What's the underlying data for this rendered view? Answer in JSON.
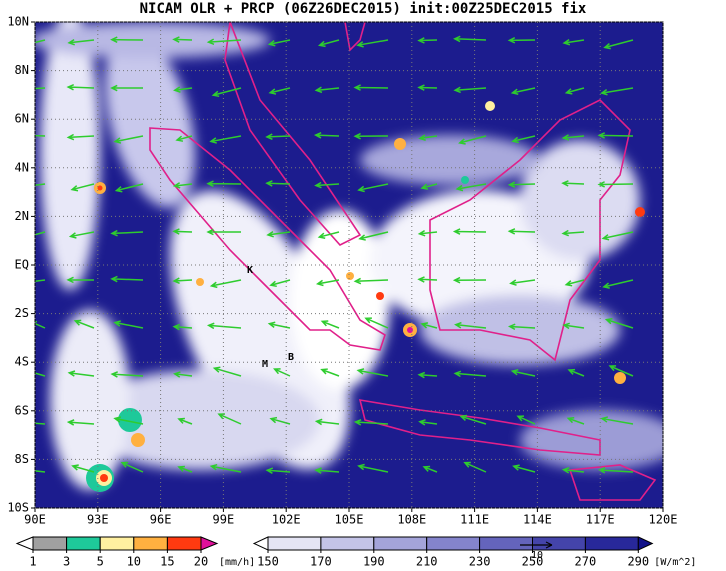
{
  "map": {
    "title": "NICAM OLR + PRCP (06Z26DEC2015) init:00Z25DEC2015 fix",
    "xlim": [
      90,
      120
    ],
    "ylim": [
      -10,
      10
    ],
    "xticks": [
      {
        "value": 90,
        "label": "90E"
      },
      {
        "value": 93,
        "label": "93E"
      },
      {
        "value": 96,
        "label": "96E"
      },
      {
        "value": 99,
        "label": "99E"
      },
      {
        "value": 102,
        "label": "102E"
      },
      {
        "value": 105,
        "label": "105E"
      },
      {
        "value": 108,
        "label": "108E"
      },
      {
        "value": 111,
        "label": "111E"
      },
      {
        "value": 114,
        "label": "114E"
      },
      {
        "value": 117,
        "label": "117E"
      },
      {
        "value": 120,
        "label": "120E"
      }
    ],
    "yticks": [
      {
        "value": -10,
        "label": "10S"
      },
      {
        "value": -8,
        "label": "8S"
      },
      {
        "value": -6,
        "label": "6S"
      },
      {
        "value": -4,
        "label": "4S"
      },
      {
        "value": -2,
        "label": "2S"
      },
      {
        "value": 0,
        "label": "EQ"
      },
      {
        "value": 2,
        "label": "2N"
      },
      {
        "value": 4,
        "label": "4N"
      },
      {
        "value": 6,
        "label": "6N"
      },
      {
        "value": 8,
        "label": "8N"
      },
      {
        "value": 10,
        "label": "10N"
      }
    ],
    "grid": true,
    "markers": [
      {
        "label": "K"
      },
      {
        "label": "M"
      },
      {
        "label": "B"
      }
    ],
    "reference_vector": 10
  },
  "colorbars": [
    {
      "ticks": [
        1,
        3,
        5,
        10,
        15,
        20
      ],
      "unit": "[mm/h]",
      "colors": [
        "#ffffff",
        "#a0a0a0",
        "#1ec99a",
        "#fff0a0",
        "#ffb040",
        "#ff3a10",
        "#e0109a"
      ]
    },
    {
      "ticks": [
        150,
        170,
        190,
        210,
        230,
        250,
        270,
        290
      ],
      "unit": "[W/m^2]",
      "colors": [
        "#ffffff",
        "#e4e4f4",
        "#c4c4e8",
        "#a4a4da",
        "#8484cc",
        "#6464bc",
        "#4444aa",
        "#28289a",
        "#101088"
      ]
    }
  ]
}
